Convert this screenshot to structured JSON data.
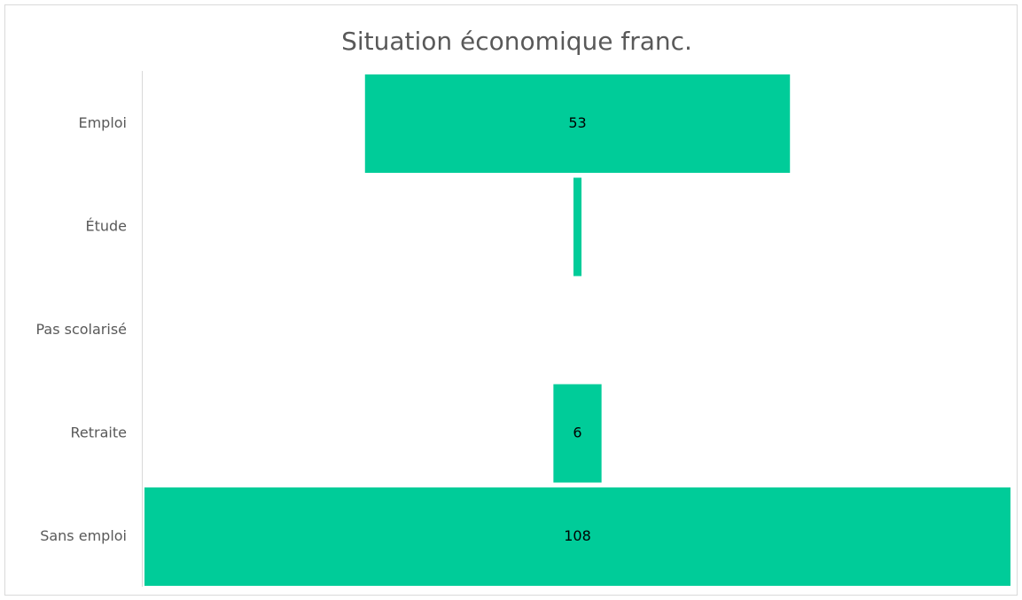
{
  "chart_data": {
    "type": "funnel",
    "title": "Situation économique franc.",
    "categories": [
      "Emploi",
      "Étude",
      "Pas scolarisé",
      "Retraite",
      "Sans emploi"
    ],
    "values": [
      53,
      1,
      0,
      6,
      108
    ],
    "value_labels": [
      "53",
      null,
      null,
      "6",
      "108"
    ],
    "color": "#00cc99"
  }
}
